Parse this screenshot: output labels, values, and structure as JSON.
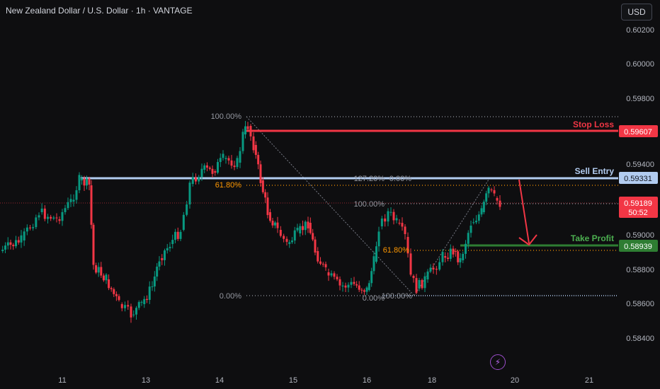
{
  "header": {
    "title": "New Zealand Dollar / U.S. Dollar · 1h · VANTAGE",
    "currency": "USD"
  },
  "chart_data": {
    "type": "candlestick",
    "title": "New Zealand Dollar / U.S. Dollar · 1h · VANTAGE",
    "x_tick_labels": [
      "11",
      "13",
      "14",
      "15",
      "16",
      "18",
      "20",
      "21"
    ],
    "y_tick_labels": [
      "0.60200",
      "0.60000",
      "0.59800",
      "0.59400",
      "0.59000",
      "0.58800",
      "0.58600",
      "0.58400"
    ],
    "price_labels": [
      {
        "id": "stop",
        "price": 0.59607,
        "label": "0.59607",
        "color": "#f23645"
      },
      {
        "id": "entry",
        "price": 0.59331,
        "label": "0.59331",
        "color": "#b2ccf0"
      },
      {
        "id": "current",
        "price": 0.59189,
        "label": "0.59189",
        "countdown": "50:52",
        "color": "#f23645"
      },
      {
        "id": "tp",
        "price": 0.58939,
        "label": "0.58939",
        "color": "#2e7d32"
      }
    ],
    "annotations": {
      "stop_loss": "Stop Loss",
      "sell_entry": "Sell Entry",
      "take_profit": "Take Profit"
    },
    "fib_labels": {
      "f1_top": "100.00%",
      "f1_mid": "61.80%",
      "f1_bottom": "0.00%",
      "f2_top": "127.20%",
      "f2_top_b": "0.00%",
      "f2_mid_top": "100.00%",
      "f2_mid": "61.80%",
      "f2_bottom_a": "0.00%",
      "f2_bottom_b": "100.00%"
    },
    "colors": {
      "up": "#089981",
      "down": "#f23645",
      "fib": "#787b86",
      "fib_orange": "#ff9800"
    }
  }
}
